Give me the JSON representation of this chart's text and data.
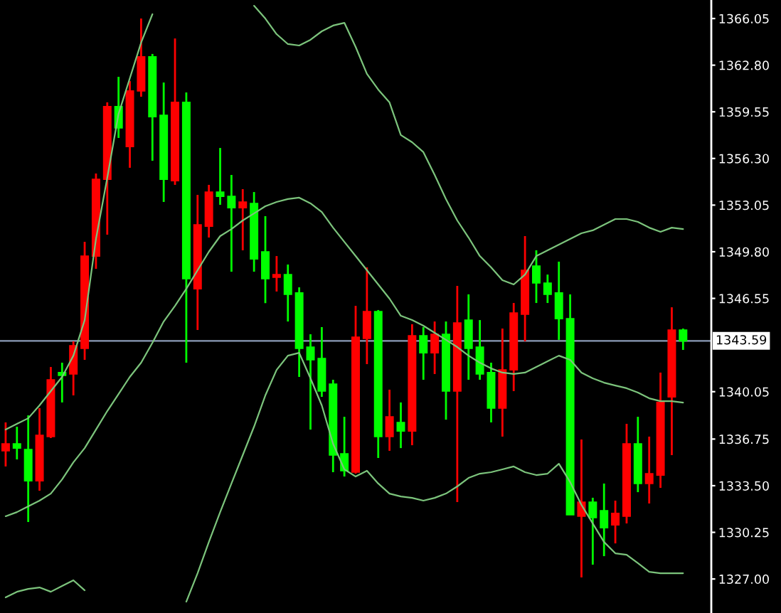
{
  "chart_data": {
    "type": "candlestick",
    "categories": [
      null,
      null,
      null,
      null,
      null,
      null,
      null,
      null,
      null,
      null,
      null,
      null,
      null,
      null,
      null,
      null,
      null,
      null,
      null,
      null,
      null,
      null,
      null,
      null,
      null,
      null,
      null,
      null,
      null,
      null,
      null,
      null,
      null,
      null,
      null,
      null,
      null,
      null,
      null,
      null,
      null,
      null,
      null,
      null,
      null,
      null,
      null,
      null,
      null,
      null,
      null,
      null,
      null,
      null,
      null,
      null,
      null,
      null,
      null,
      null,
      null
    ],
    "ohlc": [
      [
        1335.93,
        1337.91,
        1334.84,
        1336.42
      ],
      [
        1336.42,
        1337.61,
        1335.33,
        1336.12
      ],
      [
        1336.02,
        1338.4,
        1330.97,
        1333.84
      ],
      [
        1333.84,
        1338.9,
        1333.15,
        1337.01
      ],
      [
        1336.92,
        1341.77,
        1336.82,
        1340.88
      ],
      [
        1341.38,
        1342.07,
        1339.3,
        1341.18
      ],
      [
        1341.28,
        1343.56,
        1339.79,
        1343.26
      ],
      [
        1343.06,
        1350.49,
        1342.27,
        1349.5
      ],
      [
        1349.5,
        1355.25,
        1348.61,
        1354.85
      ],
      [
        1354.85,
        1360.21,
        1350.99,
        1359.91
      ],
      [
        1359.91,
        1361.99,
        1357.73,
        1358.42
      ],
      [
        1357.13,
        1361.69,
        1355.65,
        1361.0
      ],
      [
        1361.0,
        1366.05,
        1360.6,
        1363.38
      ],
      [
        1363.38,
        1363.58,
        1356.14,
        1359.21
      ],
      [
        1359.31,
        1361.59,
        1353.27,
        1354.85
      ],
      [
        1354.75,
        1364.66,
        1354.46,
        1360.21
      ],
      [
        1360.21,
        1360.9,
        1342.07,
        1347.92
      ],
      [
        1347.22,
        1353.76,
        1344.35,
        1351.68
      ],
      [
        1351.58,
        1354.46,
        1350.79,
        1353.96
      ],
      [
        1353.96,
        1357.03,
        1353.07,
        1353.66
      ],
      [
        1353.66,
        1355.15,
        1348.41,
        1352.87
      ],
      [
        1352.87,
        1354.16,
        1349.9,
        1353.27
      ],
      [
        1353.17,
        1353.96,
        1348.41,
        1349.3
      ],
      [
        1349.8,
        1352.28,
        1346.22,
        1347.92
      ],
      [
        1348.02,
        1349.5,
        1347.03,
        1348.21
      ],
      [
        1348.21,
        1348.91,
        1344.94,
        1346.83
      ],
      [
        1346.93,
        1347.32,
        1341.08,
        1343.06
      ],
      [
        1343.16,
        1344.05,
        1337.41,
        1342.27
      ],
      [
        1342.37,
        1344.55,
        1339.69,
        1340.09
      ],
      [
        1340.58,
        1340.88,
        1334.44,
        1335.63
      ],
      [
        1335.73,
        1338.3,
        1334.14,
        1334.54
      ],
      [
        1334.44,
        1346.03,
        1334.34,
        1343.85
      ],
      [
        1343.76,
        1348.71,
        1341.97,
        1345.64
      ],
      [
        1345.64,
        1345.74,
        1335.43,
        1336.92
      ],
      [
        1336.92,
        1340.19,
        1335.93,
        1338.3
      ],
      [
        1337.91,
        1339.3,
        1336.12,
        1337.31
      ],
      [
        1337.31,
        1344.75,
        1336.32,
        1343.95
      ],
      [
        1343.95,
        1344.55,
        1340.88,
        1342.76
      ],
      [
        1342.76,
        1344.94,
        1341.28,
        1344.05
      ],
      [
        1344.05,
        1344.94,
        1338.1,
        1340.09
      ],
      [
        1340.09,
        1347.42,
        1332.36,
        1344.84
      ],
      [
        1345.04,
        1346.83,
        1340.88,
        1343.06
      ],
      [
        1343.16,
        1345.04,
        1340.88,
        1341.28
      ],
      [
        1341.38,
        1342.07,
        1337.91,
        1338.9
      ],
      [
        1338.9,
        1344.45,
        1336.92,
        1341.57
      ],
      [
        1341.57,
        1346.23,
        1340.09,
        1345.54
      ],
      [
        1345.44,
        1350.89,
        1343.56,
        1348.51
      ],
      [
        1348.81,
        1349.9,
        1346.23,
        1347.62
      ],
      [
        1347.62,
        1348.21,
        1346.23,
        1346.83
      ],
      [
        1346.93,
        1349.11,
        1343.66,
        1345.14
      ],
      [
        1345.14,
        1346.83,
        1331.47,
        1331.47
      ],
      [
        1331.37,
        1336.72,
        1327.11,
        1332.36
      ],
      [
        1332.36,
        1332.66,
        1328.0,
        1331.27
      ],
      [
        1331.76,
        1333.65,
        1328.59,
        1330.57
      ],
      [
        1330.77,
        1332.46,
        1329.48,
        1331.57
      ],
      [
        1331.37,
        1337.81,
        1330.87,
        1336.42
      ],
      [
        1336.42,
        1338.3,
        1333.05,
        1333.65
      ],
      [
        1333.65,
        1336.92,
        1332.26,
        1334.34
      ],
      [
        1334.24,
        1341.38,
        1333.35,
        1339.3
      ],
      [
        1339.69,
        1345.93,
        1335.63,
        1344.35
      ],
      [
        1344.35,
        1344.45,
        1342.96,
        1343.59
      ]
    ],
    "colors": [
      "#ff0000",
      "#00ff00",
      "#00ff00",
      "#ff0000",
      "#ff0000",
      "#00ff00",
      "#ff0000",
      "#ff0000",
      "#ff0000",
      "#ff0000",
      "#00ff00",
      "#ff0000",
      "#ff0000",
      "#00ff00",
      "#00ff00",
      "#ff0000",
      "#00ff00",
      "#ff0000",
      "#ff0000",
      "#00ff00",
      "#00ff00",
      "#ff0000",
      "#00ff00",
      "#00ff00",
      "#ff0000",
      "#00ff00",
      "#00ff00",
      "#00ff00",
      "#00ff00",
      "#00ff00",
      "#00ff00",
      "#ff0000",
      "#ff0000",
      "#00ff00",
      "#ff0000",
      "#00ff00",
      "#ff0000",
      "#00ff00",
      "#ff0000",
      "#00ff00",
      "#ff0000",
      "#00ff00",
      "#00ff00",
      "#00ff00",
      "#ff0000",
      "#ff0000",
      "#ff0000",
      "#00ff00",
      "#00ff00",
      "#00ff00",
      "#00ff00",
      "#ff0000",
      "#00ff00",
      "#00ff00",
      "#ff0000",
      "#ff0000",
      "#00ff00",
      "#ff0000",
      "#ff0000",
      "#ff0000",
      "#00ff00"
    ],
    "series": [
      {
        "type": "line",
        "color": "#7cc47c",
        "values": [
          1337.41,
          1337.81,
          1338.2,
          1339.1,
          1340.09,
          1341.08,
          1342.56,
          1345.04,
          1350.69,
          1354.95,
          1359.41,
          1361.89,
          1364.37,
          1366.35,
          null,
          null,
          null,
          null,
          null,
          null,
          null,
          null,
          1366.94,
          1366.05,
          1364.96,
          1364.27,
          1364.17,
          1364.57,
          1365.16,
          1365.56,
          1365.75,
          1364.07,
          1362.19,
          1361.1,
          1360.2,
          1357.93,
          1357.43,
          1356.74,
          1355.15,
          1353.47,
          1351.98,
          1350.79,
          1349.5,
          1348.71,
          1347.82,
          1347.52,
          1348.21,
          1349.5,
          1349.9,
          1350.29,
          1350.69,
          1351.09,
          1351.29,
          1351.68,
          1352.08,
          1352.08,
          1351.88,
          1351.48,
          1351.19,
          1351.48,
          1351.38
        ]
      },
      {
        "type": "line",
        "color": "#7cc47c",
        "values": [
          1331.37,
          1331.66,
          1332.06,
          1332.46,
          1332.95,
          1333.94,
          1335.13,
          1336.12,
          1337.41,
          1338.7,
          1339.89,
          1341.08,
          1342.07,
          1343.46,
          1344.94,
          1346.03,
          1347.22,
          1348.51,
          1349.8,
          1350.89,
          1351.38,
          1351.98,
          1352.47,
          1352.97,
          1353.27,
          1353.47,
          1353.57,
          1353.17,
          1352.57,
          1351.48,
          1350.49,
          1349.5,
          1348.51,
          1347.52,
          1346.53,
          1345.34,
          1345.04,
          1344.65,
          1344.15,
          1343.66,
          1343.16,
          1342.56,
          1342.07,
          1341.67,
          1341.38,
          1341.28,
          1341.38,
          1341.77,
          1342.17,
          1342.56,
          1342.27,
          1341.38,
          1340.98,
          1340.68,
          1340.48,
          1340.29,
          1339.99,
          1339.59,
          1339.39,
          1339.39,
          1339.29
        ]
      },
      {
        "type": "line",
        "color": "#7cc47c",
        "values": [
          1325.72,
          1326.11,
          1326.31,
          1326.41,
          1326.11,
          1326.51,
          1326.91,
          1326.21,
          null,
          null,
          null,
          null,
          null,
          null,
          null,
          null,
          1325.42,
          1327.4,
          1329.58,
          1331.66,
          1333.65,
          1335.63,
          1337.61,
          1339.79,
          1341.57,
          1342.56,
          1342.76,
          1340.98,
          1339.1,
          1336.42,
          1334.64,
          1334.14,
          1334.54,
          1333.65,
          1332.95,
          1332.75,
          1332.65,
          1332.46,
          1332.65,
          1332.95,
          1333.45,
          1334.04,
          1334.34,
          1334.44,
          1334.64,
          1334.84,
          1334.44,
          1334.24,
          1334.34,
          1335.03,
          1333.75,
          1332.16,
          1330.87,
          1329.58,
          1328.79,
          1328.69,
          1328.1,
          1327.5,
          1327.4,
          1327.4,
          1327.4
        ]
      }
    ],
    "ylim": [
      1324.63,
      1367.34
    ],
    "yticks": [
      1366.05,
      {
        "value": 1362.8,
        "label": "1362.80"
      },
      1359.55,
      {
        "value": 1356.3,
        "label": "1356.30"
      },
      1353.05,
      {
        "value": 1349.8,
        "label": "1349.80"
      },
      1346.55,
      1340.05,
      1336.75,
      {
        "value": 1333.5,
        "label": "1333.50"
      },
      1330.25,
      {
        "value": 1327.0,
        "label": "1327.00"
      }
    ],
    "ref_lines": [
      {
        "axis": "y",
        "value": 1343.59,
        "label": "1343.59",
        "color": "#8c9cb8"
      }
    ],
    "tick_labels": "y",
    "grid": false,
    "legend": false
  }
}
